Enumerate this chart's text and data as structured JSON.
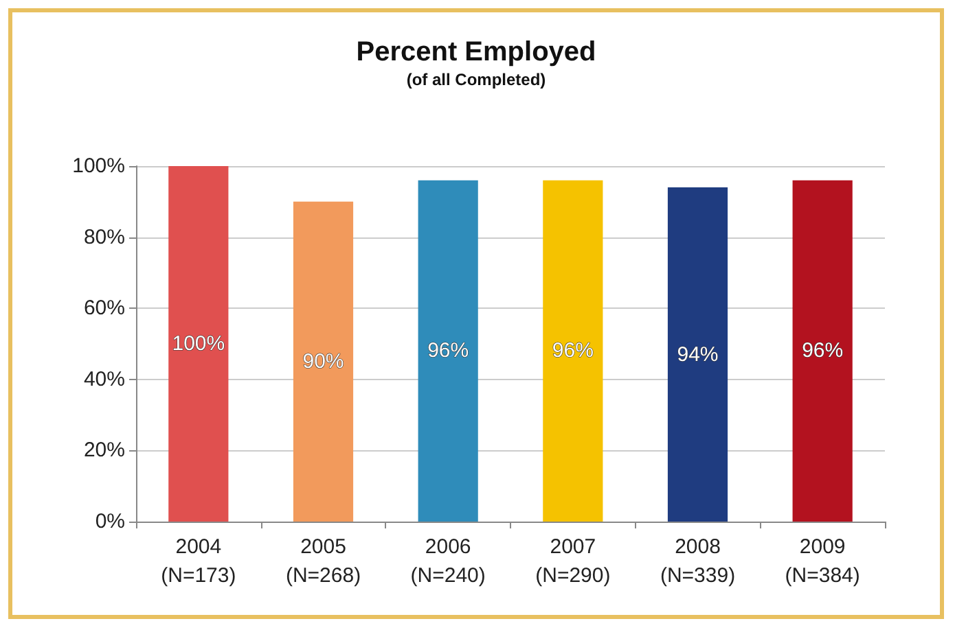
{
  "chart_data": {
    "type": "bar",
    "title": "Percent Employed",
    "subtitle": "(of all Completed)",
    "categories": [
      "2004\n(N=173)",
      "2005\n(N=268)",
      "2006\n(N=240)",
      "2007\n(N=290)",
      "2008\n(N=339)",
      "2009\n(N=384)"
    ],
    "values": [
      100,
      90,
      96,
      96,
      94,
      96
    ],
    "value_labels": [
      "100%",
      "90%",
      "96%",
      "96%",
      "94%",
      "96%"
    ],
    "colors": [
      "#e0504f",
      "#f29a5c",
      "#2f8cba",
      "#f5c200",
      "#1f3c80",
      "#b3121f"
    ],
    "ylim": [
      0,
      100
    ],
    "yticks": [
      {
        "value": 0,
        "label": "0%"
      },
      {
        "value": 20,
        "label": "20%"
      },
      {
        "value": 40,
        "label": "40%"
      },
      {
        "value": 60,
        "label": "60%"
      },
      {
        "value": 80,
        "label": "80%"
      },
      {
        "value": 100,
        "label": "100%"
      }
    ],
    "grid": "y"
  }
}
